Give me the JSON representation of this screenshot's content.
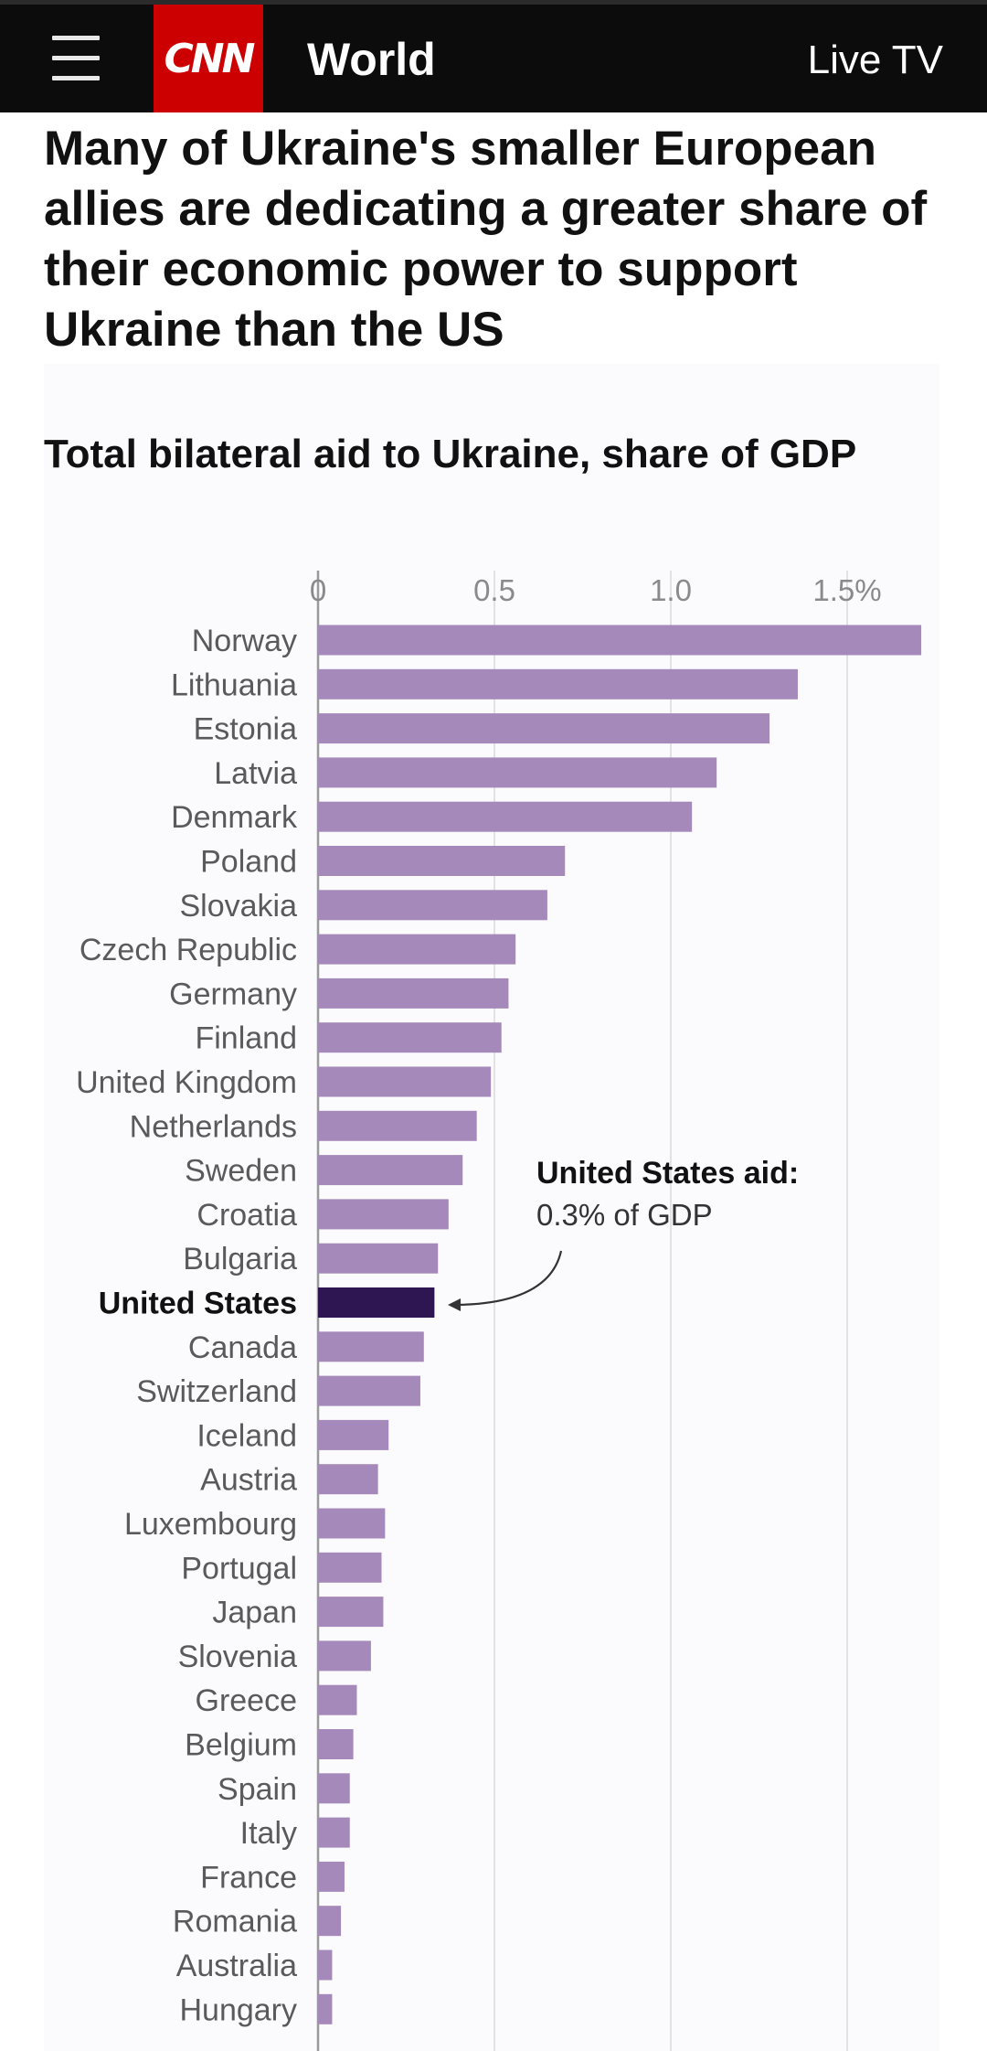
{
  "header": {
    "logo_text": "CNN",
    "section": "World",
    "live_tv": "Live TV"
  },
  "headline": "Many of Ukraine's smaller European allies are dedicating a greater share of their economic power to support Ukraine than the US",
  "colors": {
    "bar": "#a589ba",
    "highlight_bar": "#2d1652",
    "header_bg": "#0c0c0c",
    "brand_red": "#cc0000"
  },
  "chart_data": {
    "type": "bar",
    "orientation": "horizontal",
    "title": "Total bilateral aid to Ukraine, share of GDP",
    "xlim": [
      0,
      1.72
    ],
    "x_ticks": [
      0,
      0.5,
      1.0,
      1.5
    ],
    "x_tick_labels": [
      "0",
      "0.5",
      "1.0",
      "1.5%"
    ],
    "grid": true,
    "highlight": "United States",
    "annotation": {
      "title": "United States aid:",
      "text": "0.3% of GDP"
    },
    "categories": [
      "Norway",
      "Lithuania",
      "Estonia",
      "Latvia",
      "Denmark",
      "Poland",
      "Slovakia",
      "Czech Republic",
      "Germany",
      "Finland",
      "United Kingdom",
      "Netherlands",
      "Sweden",
      "Croatia",
      "Bulgaria",
      "United States",
      "Canada",
      "Switzerland",
      "Iceland",
      "Austria",
      "Luxembourg",
      "Portugal",
      "Japan",
      "Slovenia",
      "Greece",
      "Belgium",
      "Spain",
      "Italy",
      "France",
      "Romania",
      "Australia",
      "Hungary"
    ],
    "values": [
      1.71,
      1.36,
      1.28,
      1.13,
      1.06,
      0.7,
      0.65,
      0.56,
      0.54,
      0.52,
      0.49,
      0.45,
      0.41,
      0.37,
      0.34,
      0.33,
      0.3,
      0.29,
      0.2,
      0.17,
      0.19,
      0.18,
      0.185,
      0.15,
      0.11,
      0.1,
      0.09,
      0.09,
      0.075,
      0.065,
      0.04,
      0.04
    ]
  }
}
